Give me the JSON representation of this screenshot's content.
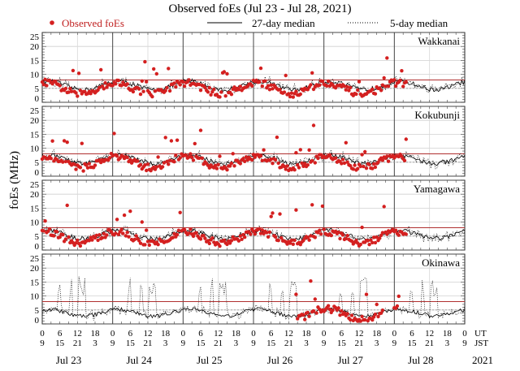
{
  "chart_data": {
    "type": "scatter",
    "title": "Observed foEs (Jul 23 - Jul 28, 2021)",
    "ylabel": "foEs (MHz)",
    "xlabel": "",
    "ylim": [
      0,
      25
    ],
    "yticks": [
      "0",
      "5",
      "10",
      "15",
      "20",
      "25"
    ],
    "reference_line_mhz": 8,
    "grid": true,
    "legend": {
      "placement": "top",
      "entries": [
        {
          "label": "Observed foEs",
          "style": "red-dot",
          "color": "#d42020"
        },
        {
          "label": "27-day median",
          "style": "solid-line",
          "color": "#000000"
        },
        {
          "label": "5-day median",
          "style": "dotted-line",
          "color": "#000000"
        }
      ]
    },
    "x_axis": {
      "ut_row_label": "UT",
      "jst_row_label": "JST",
      "ut_ticks": [
        "0",
        "6",
        "12",
        "18",
        "0",
        "6",
        "12",
        "18",
        "0",
        "6",
        "12",
        "18",
        "0",
        "6",
        "12",
        "18",
        "0",
        "6",
        "12",
        "18",
        "0",
        "6",
        "12",
        "18",
        "0"
      ],
      "jst_ticks": [
        "9",
        "15",
        "21",
        "3",
        "9",
        "15",
        "21",
        "3",
        "9",
        "15",
        "21",
        "3",
        "9",
        "15",
        "21",
        "3",
        "9",
        "15",
        "21",
        "3",
        "9",
        "15",
        "21",
        "3",
        "9"
      ],
      "days": [
        "Jul 23",
        "Jul 24",
        "Jul 25",
        "Jul 26",
        "Jul 27",
        "Jul 28"
      ],
      "year": "2021"
    },
    "series": [
      {
        "name": "Wakkanai",
        "median27_level": 6,
        "observed_peaks_mhz": [
          16.5,
          14.8,
          14.7,
          15.2,
          15.8,
          17.0,
          16.5
        ]
      },
      {
        "name": "Kokubunji",
        "median27_level": 6,
        "observed_peaks_mhz": [
          16.0,
          15.5,
          14.0,
          13.0
        ]
      },
      {
        "name": "Yamagawa",
        "median27_level": 5.5,
        "observed_peaks_mhz": [
          15.0,
          13.8,
          14.5
        ]
      },
      {
        "name": "Okinawa",
        "median27_level": 4.5,
        "median5_peaks_mhz": [
          17.0,
          16.5,
          17.0,
          16.5
        ],
        "observed_peaks_mhz": [
          17.5,
          16.8,
          15.5
        ]
      }
    ],
    "colors": {
      "observed": "#d42020",
      "reference_line": "#b03030",
      "grid": "#c8c8c8",
      "frame": "#555555"
    }
  }
}
